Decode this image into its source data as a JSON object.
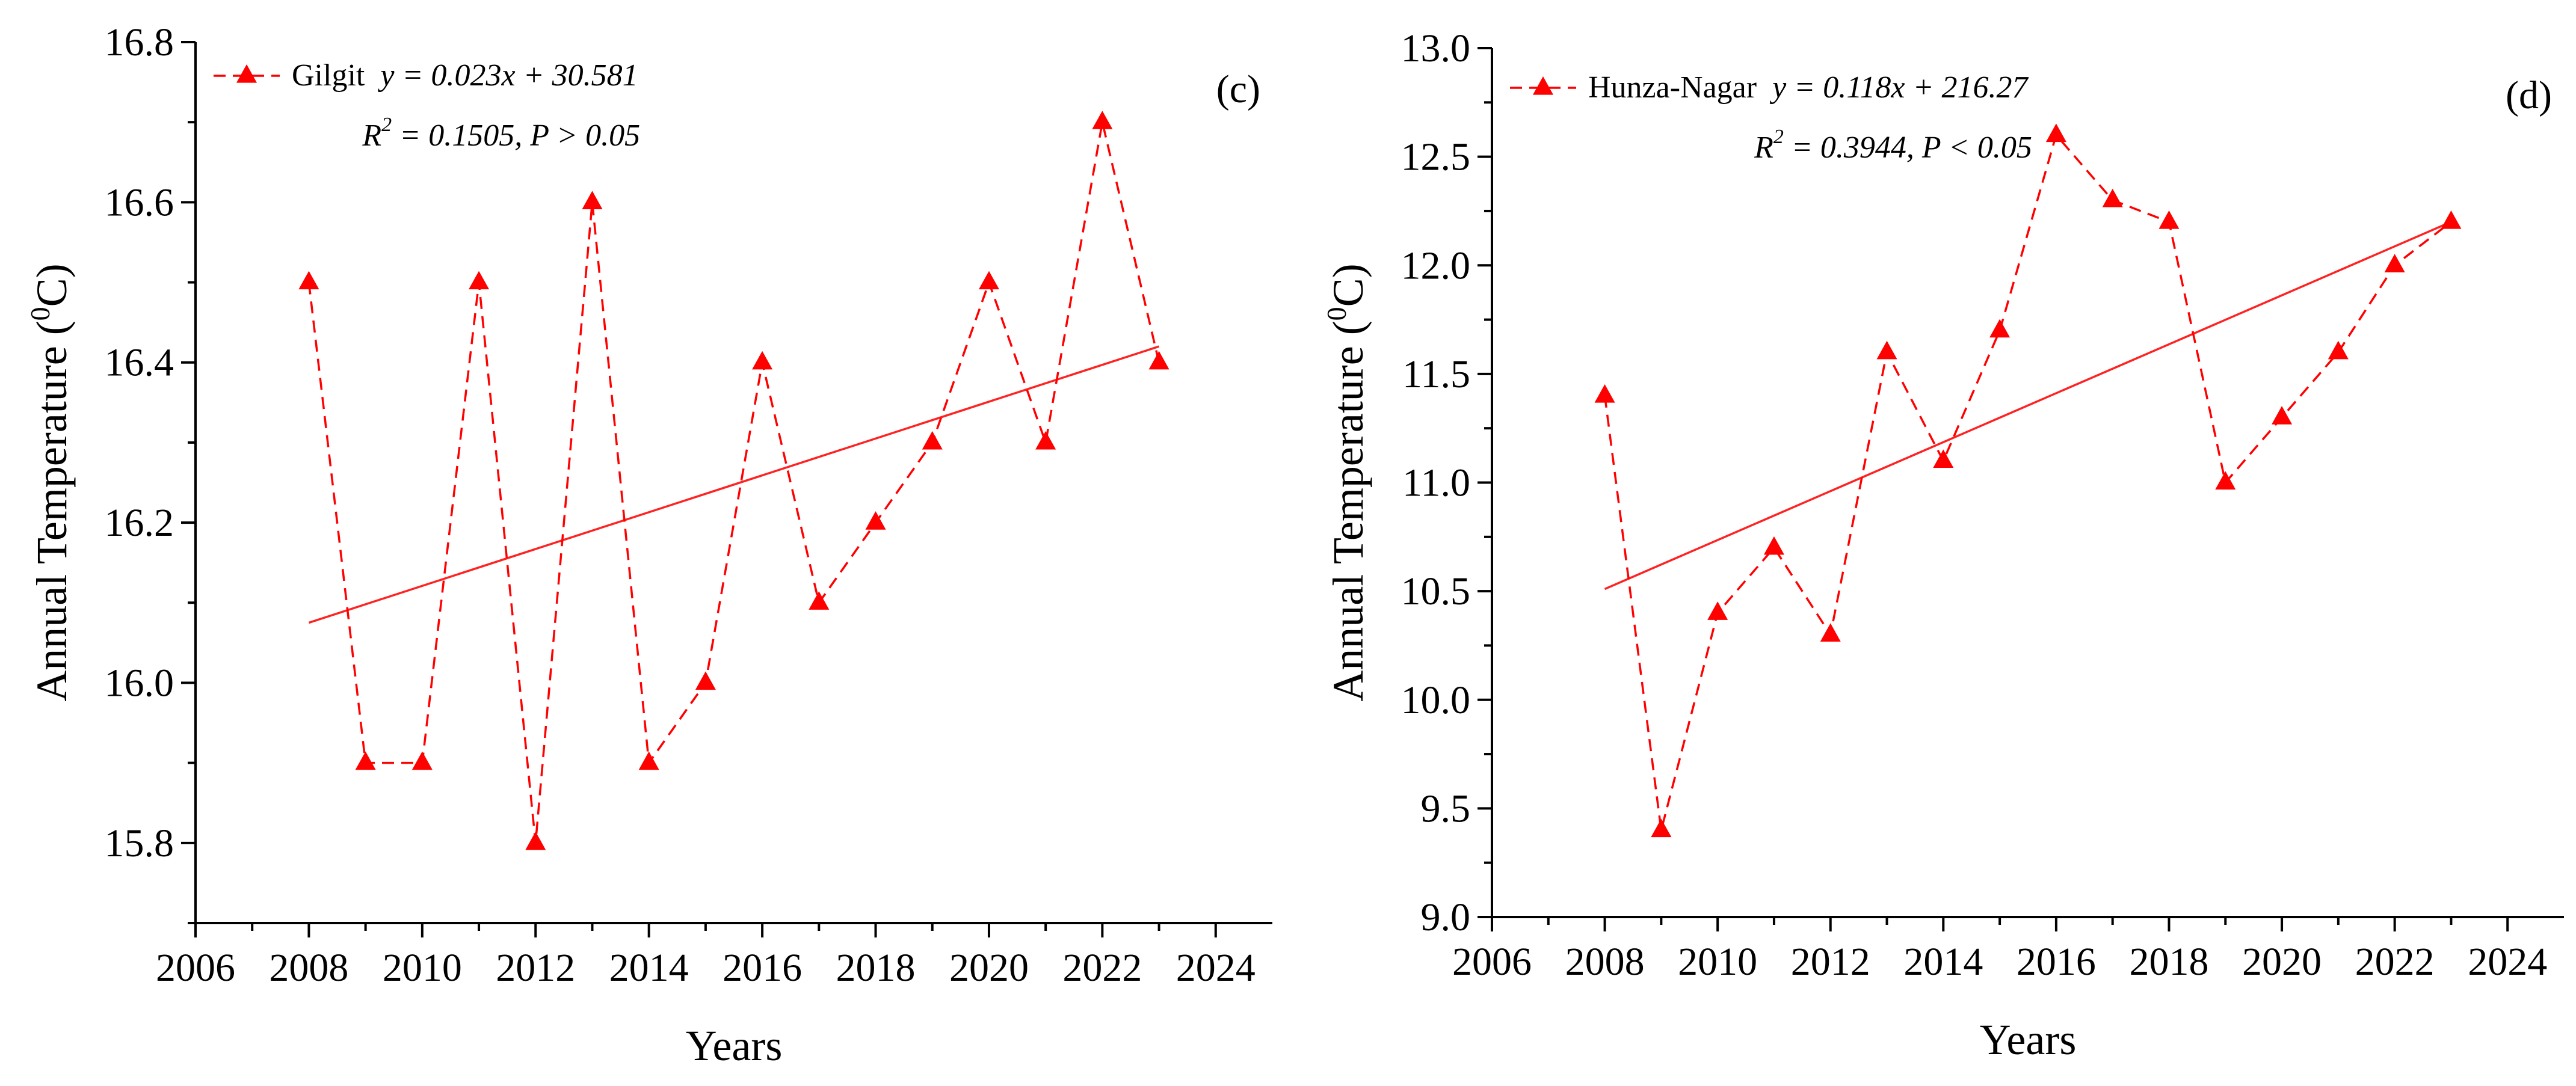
{
  "chart_data": [
    {
      "type": "line",
      "panel_label": "(c)",
      "xlabel": "Years",
      "ylabel": "Annual Temperature (",
      "ylabel_sup": "0",
      "ylabel_unit": "C)",
      "xlim": [
        2006,
        2025
      ],
      "ylim": [
        15.7,
        16.8
      ],
      "xticks": [
        2006,
        2008,
        2010,
        2012,
        2014,
        2016,
        2018,
        2020,
        2022,
        2024
      ],
      "yticks": [
        15.8,
        16.0,
        16.2,
        16.4,
        16.6,
        16.8
      ],
      "xtick_labels": [
        "2006",
        "2008",
        "2010",
        "2012",
        "2014",
        "2016",
        "2018",
        "2020",
        "2022",
        "2024"
      ],
      "ytick_labels": [
        "15.8",
        "16.0",
        "16.2",
        "16.4",
        "16.6",
        "16.8"
      ],
      "legend_position": "top-left",
      "series": [
        {
          "name": "Gilgit",
          "x": [
            2008,
            2009,
            2010,
            2011,
            2012,
            2013,
            2014,
            2015,
            2016,
            2017,
            2018,
            2019,
            2020,
            2021,
            2022,
            2023
          ],
          "values": [
            16.5,
            15.9,
            15.9,
            16.5,
            15.8,
            16.6,
            15.9,
            16.0,
            16.4,
            16.1,
            16.2,
            16.3,
            16.5,
            16.3,
            16.7,
            16.4
          ]
        }
      ],
      "trendline": {
        "x": [
          2008,
          2023
        ],
        "y": [
          16.075,
          16.42
        ]
      },
      "equation": "y = 0.023x + 30.581",
      "r2_prefix": "R",
      "r2_sup": "2",
      "r2_text": " = 0.1505, P > 0.05",
      "colors": {
        "series": "#ff0000",
        "trend": "#ff2222"
      }
    },
    {
      "type": "line",
      "panel_label": "(d)",
      "xlabel": "Years",
      "ylabel": "Annual Temperature (",
      "ylabel_sup": "0",
      "ylabel_unit": "C)",
      "xlim": [
        2006,
        2025
      ],
      "ylim": [
        9.0,
        13.0
      ],
      "xticks": [
        2006,
        2008,
        2010,
        2012,
        2014,
        2016,
        2018,
        2020,
        2022,
        2024
      ],
      "yticks": [
        9.0,
        9.5,
        10.0,
        10.5,
        11.0,
        11.5,
        12.0,
        12.5,
        13.0
      ],
      "xtick_labels": [
        "2006",
        "2008",
        "2010",
        "2012",
        "2014",
        "2016",
        "2018",
        "2020",
        "2022",
        "2024"
      ],
      "ytick_labels": [
        "9.0",
        "9.5",
        "10.0",
        "10.5",
        "11.0",
        "11.5",
        "12.0",
        "12.5",
        "13.0"
      ],
      "legend_position": "top-left",
      "series": [
        {
          "name": "Hunza-Nagar",
          "x": [
            2008,
            2009,
            2010,
            2011,
            2012,
            2013,
            2014,
            2015,
            2016,
            2017,
            2018,
            2019,
            2020,
            2021,
            2022,
            2023
          ],
          "values": [
            11.4,
            9.4,
            10.4,
            10.7,
            10.3,
            11.6,
            11.1,
            11.7,
            12.6,
            12.3,
            12.2,
            11.0,
            11.3,
            11.6,
            12.0,
            12.2
          ]
        }
      ],
      "trendline": {
        "x": [
          2008,
          2023
        ],
        "y": [
          10.51,
          12.2
        ]
      },
      "equation": "y = 0.118x + 216.27",
      "r2_prefix": "R",
      "r2_sup": "2",
      "r2_text": " = 0.3944, P < 0.05",
      "colors": {
        "series": "#ff0000",
        "trend": "#ff2222"
      }
    }
  ]
}
